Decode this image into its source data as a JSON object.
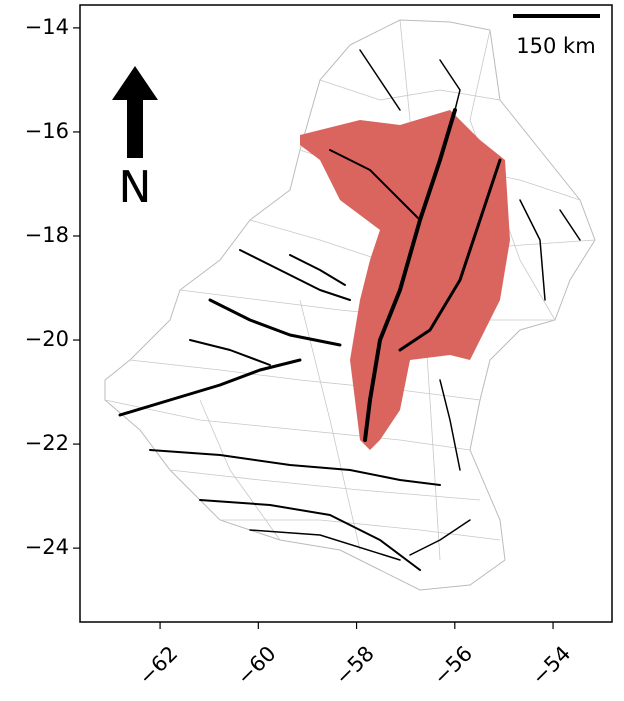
{
  "map": {
    "xlim": [
      -63.63,
      -52.8
    ],
    "ylim": [
      -25.42,
      -13.56
    ],
    "xticks": [
      {
        "value": -62,
        "label": "−62"
      },
      {
        "value": -60,
        "label": "−60"
      },
      {
        "value": -58,
        "label": "−58"
      },
      {
        "value": -56,
        "label": "−56"
      },
      {
        "value": -54,
        "label": "−54"
      }
    ],
    "yticks": [
      {
        "value": -14,
        "label": "−14"
      },
      {
        "value": -16,
        "label": "−16"
      },
      {
        "value": -18,
        "label": "−18"
      },
      {
        "value": -20,
        "label": "−20"
      },
      {
        "value": -22,
        "label": "−22"
      },
      {
        "value": -24,
        "label": "−24"
      }
    ],
    "north_label": "N",
    "scale_bar_label": "150 km"
  }
}
